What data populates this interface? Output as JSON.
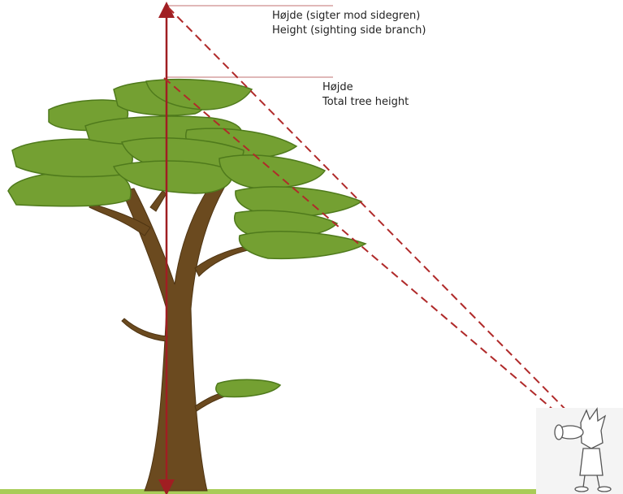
{
  "labels": [
    {
      "lines": [
        "Højde (sigter mod sidegren)",
        "Height (sighting side branch)"
      ]
    },
    {
      "lines": [
        "Højde",
        "Total tree height"
      ]
    }
  ]
}
